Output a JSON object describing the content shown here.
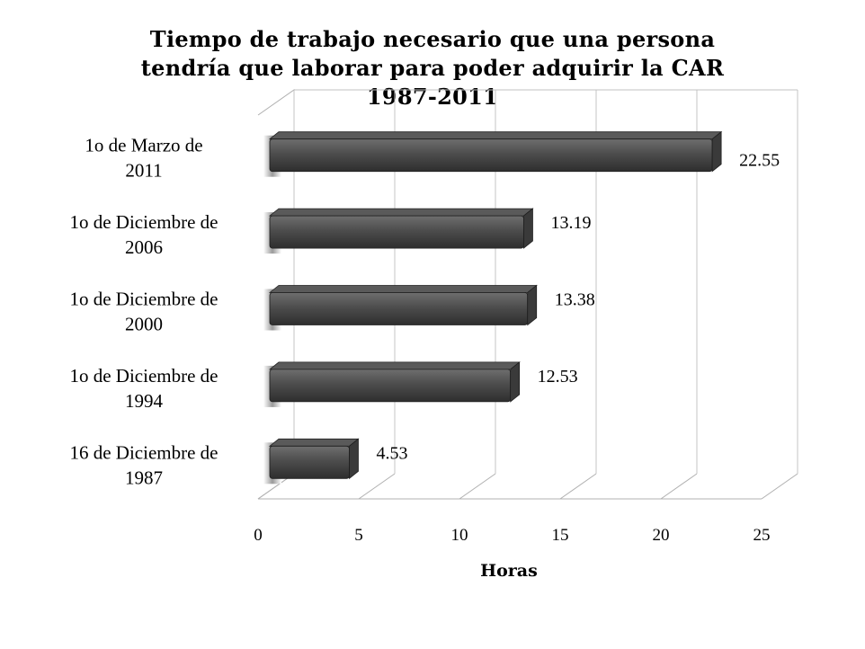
{
  "chart_data": {
    "type": "bar",
    "orientation": "horizontal",
    "style": "3d",
    "title": "Tiempo de trabajo necesario que una persona tendría que laborar para poder adquirir la CAR 1987-2011",
    "title_lines": [
      "Tiempo de trabajo necesario que una persona",
      "tendría que laborar para poder adquirir la CAR",
      "1987-2011"
    ],
    "categories": [
      [
        "1o de Marzo de",
        "2011"
      ],
      [
        "1o de Diciembre de",
        "2006"
      ],
      [
        "1o de Diciembre de",
        "2000"
      ],
      [
        "1o de Diciembre de",
        "1994"
      ],
      [
        "16 de Diciembre de",
        "1987"
      ]
    ],
    "values": [
      22.55,
      13.19,
      13.38,
      12.53,
      4.53
    ],
    "data_labels": [
      "22.55",
      "13.19",
      "13.38",
      "12.53",
      "4.53"
    ],
    "xlabel": "Horas",
    "ylabel": "",
    "xlim": [
      0,
      25
    ],
    "xticks": [
      "0",
      "5",
      "10",
      "15",
      "20",
      "25"
    ],
    "grid": true,
    "legend": "none",
    "colors": {
      "bar": "#4a4a4a",
      "bar_dark": "#2b2b2b",
      "bar_light": "#6a6a6a",
      "grid": "#b8b8b8"
    }
  }
}
